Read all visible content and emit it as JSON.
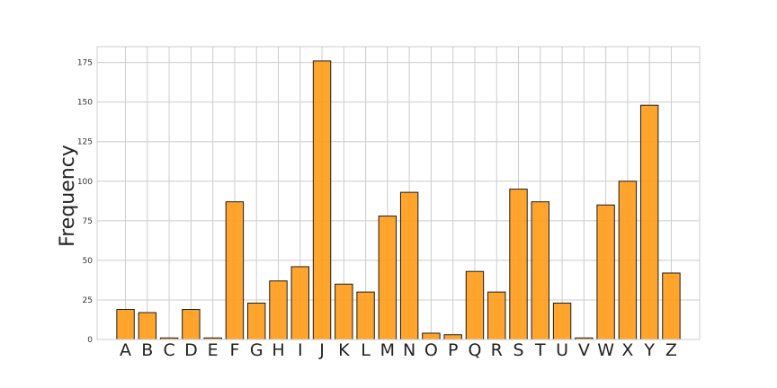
{
  "chart_data": {
    "type": "bar",
    "title": "",
    "xlabel": "",
    "ylabel": "Frequency",
    "categories": [
      "A",
      "B",
      "C",
      "D",
      "E",
      "F",
      "G",
      "H",
      "I",
      "J",
      "K",
      "L",
      "M",
      "N",
      "O",
      "P",
      "Q",
      "R",
      "S",
      "T",
      "U",
      "V",
      "W",
      "X",
      "Y",
      "Z"
    ],
    "values": [
      19,
      17,
      1,
      19,
      1,
      87,
      23,
      37,
      46,
      176,
      35,
      30,
      78,
      93,
      4,
      3,
      43,
      30,
      95,
      87,
      23,
      1,
      85,
      100,
      148,
      42
    ],
    "ylim": [
      0,
      185
    ],
    "yticks": [
      0,
      25,
      50,
      75,
      100,
      125,
      150,
      175
    ],
    "grid": true,
    "legend": "none",
    "colors": {
      "bar_fill": "#ff9d1c",
      "bar_edge": "#1c1c1c",
      "grid": "#cccccc"
    }
  }
}
